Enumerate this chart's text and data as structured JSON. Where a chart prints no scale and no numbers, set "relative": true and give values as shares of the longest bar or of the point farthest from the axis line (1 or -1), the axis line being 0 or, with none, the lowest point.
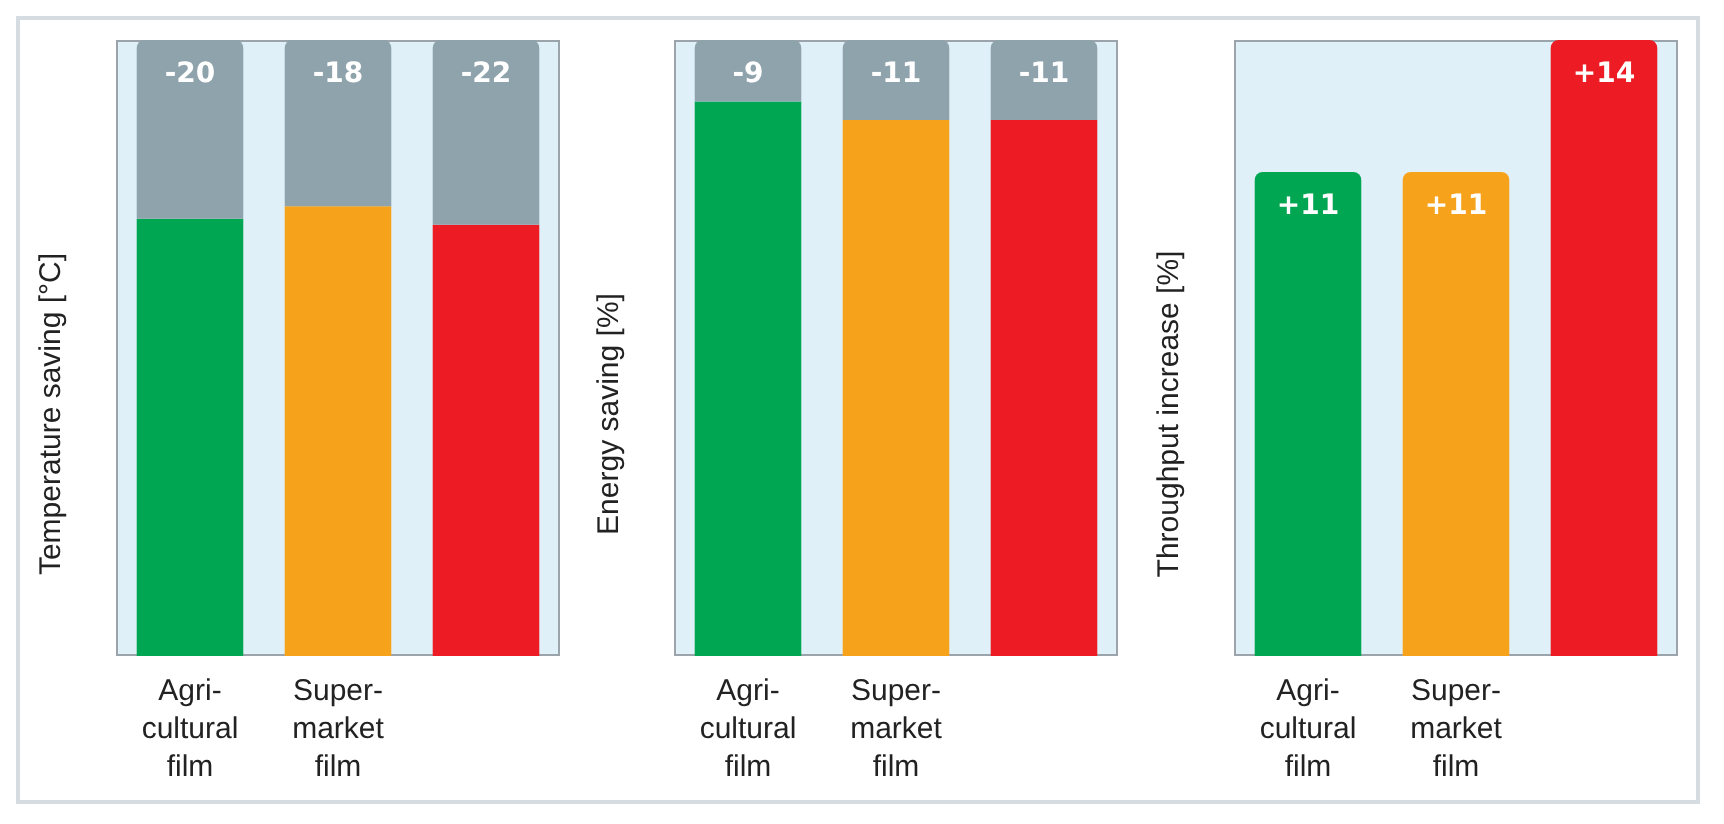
{
  "chart_data": [
    {
      "type": "bar",
      "ylabel": "Temperature saving [°C]",
      "categories": [
        "Agri-\ncultural\nfilm",
        "Super-\nmarket\nfilm",
        null
      ],
      "stacked": true,
      "relative": true,
      "series": [
        {
          "colors": [
            "#00a651",
            "#f7a21b",
            "#ed1c24"
          ],
          "values": [
            0.71,
            0.73,
            0.7
          ]
        },
        {
          "color": "#8fa3ad",
          "values": [
            0.29,
            0.27,
            0.3
          ]
        }
      ],
      "annotations": [
        {
          "text": "-20",
          "x": "Agri-\ncultural\nfilm",
          "y": 1
        },
        {
          "text": "-18",
          "x": "Super-\nmarket\nfilm",
          "y": 1
        },
        {
          "text": "-22",
          "y": 1
        }
      ]
    },
    {
      "type": "bar",
      "ylabel": "Energy saving [%]",
      "categories": [
        "Agri-\ncultural\nfilm",
        "Super-\nmarket\nfilm",
        null
      ],
      "stacked": true,
      "relative": true,
      "series": [
        {
          "colors": [
            "#00a651",
            "#f7a21b",
            "#ed1c24"
          ],
          "values": [
            0.9,
            0.87,
            0.87
          ]
        },
        {
          "color": "#8fa3ad",
          "values": [
            0.1,
            0.13,
            0.13
          ]
        }
      ],
      "annotations": [
        {
          "text": "-9",
          "x": "Agri-\ncultural\nfilm",
          "y": 1
        },
        {
          "text": "-11",
          "x": "Super-\nmarket\nfilm",
          "y": 1
        },
        {
          "text": "-11",
          "y": 1
        }
      ]
    },
    {
      "type": "bar",
      "ylabel": "Throughput increase [%]",
      "categories": [
        "Agri-\ncultural\nfilm",
        "Super-\nmarket\nfilm",
        null
      ],
      "tick_labels": "x",
      "colors": [
        "#00a651",
        "#f7a21b",
        "#ed1c24"
      ],
      "values": [
        11,
        11,
        14
      ],
      "value_labels": [
        "+11",
        "+11",
        "+14"
      ]
    }
  ]
}
